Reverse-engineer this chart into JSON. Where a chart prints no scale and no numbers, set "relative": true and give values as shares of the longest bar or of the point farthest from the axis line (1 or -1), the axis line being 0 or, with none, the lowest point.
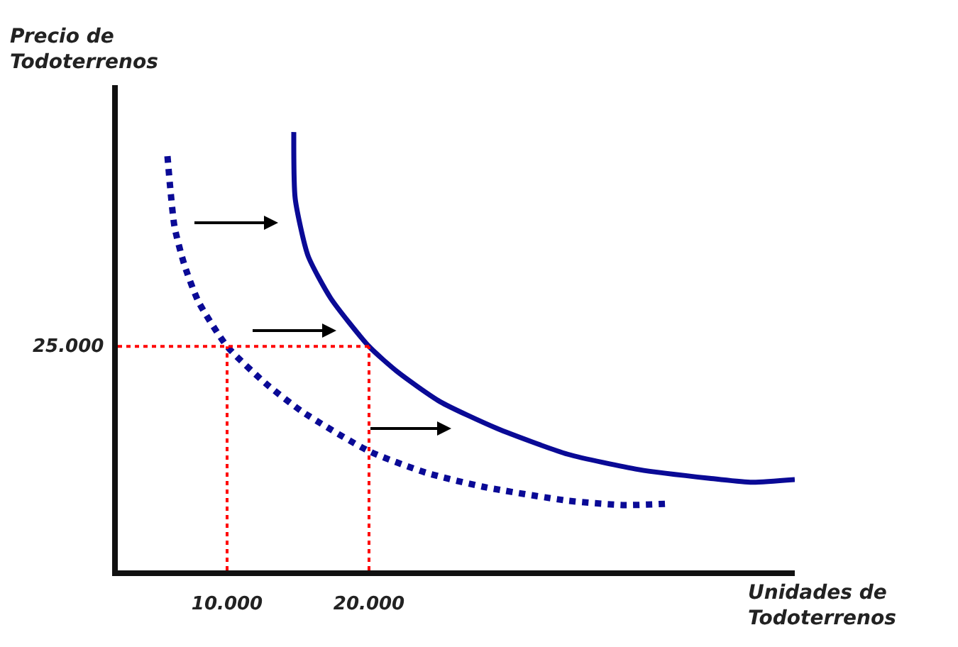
{
  "chart_data": {
    "type": "line",
    "relative": true,
    "xlabel": "Unidades de\nTodoterrenos",
    "ylabel": "Precio de\nTodoterrenos",
    "xlim": [
      2300,
      50000
    ],
    "xticks": [
      {
        "value": 10000,
        "label": "10.000"
      },
      {
        "value": 20000,
        "label": "20.000"
      }
    ],
    "grid": false,
    "marker": "none",
    "annotations": [
      "25.000"
    ],
    "x": [
      5800,
      6000,
      6300,
      7000,
      8000,
      10000,
      12700,
      15300,
      20000,
      24000,
      28000,
      34000,
      38000,
      41000
    ],
    "series": [
      {
        "color": "#0a0a96",
        "line_style": "dotted",
        "values": [
          0.945,
          0.871,
          0.783,
          0.696,
          0.612,
          0.511,
          0.427,
          0.362,
          0.272,
          0.223,
          0.191,
          0.159,
          0.149,
          0.152
        ]
      },
      {
        "color": "#0a0a96",
        "line_style": "solid",
        "x": [
          14700,
          14800,
          15700,
          17300,
          20000,
          22000,
          25000,
          29000,
          34000,
          39000,
          44000,
          47000,
          50000
        ],
        "values": [
          1.0,
          0.848,
          0.718,
          0.621,
          0.511,
          0.453,
          0.385,
          0.324,
          0.265,
          0.23,
          0.21,
          0.201,
          0.207
        ]
      }
    ],
    "ref_lines": [
      {
        "axis": "y",
        "value": 0.511,
        "color": "#ff0000",
        "line_style": "dotted"
      },
      {
        "axis": "x",
        "value": 10000,
        "color": "#ff0000",
        "line_style": "dotted"
      },
      {
        "axis": "x",
        "value": 20000,
        "color": "#ff0000",
        "line_style": "dotted"
      }
    ]
  }
}
